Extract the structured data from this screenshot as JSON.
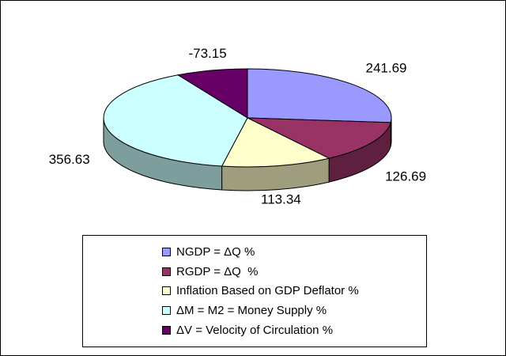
{
  "chart_data": {
    "type": "pie",
    "title": "",
    "effect": "3d",
    "legend_position": "bottom",
    "background_color": "#FFFFFF",
    "labels": [
      "NGDP = ΔQ %",
      "RGDP = ΔQ  %",
      "Inflation Based on GDP Deflator %",
      "ΔM = M2 = Money Supply %",
      "ΔV = Velocity of Circulation %"
    ],
    "values": [
      241.69,
      126.69,
      113.34,
      356.63,
      -73.15
    ],
    "data_labels": [
      "241.69",
      "126.69",
      "113.34",
      "356.63",
      "-73.15"
    ],
    "colors": [
      "#9999FF",
      "#993366",
      "#FFFFCC",
      "#CCFFFF",
      "#660066"
    ]
  }
}
